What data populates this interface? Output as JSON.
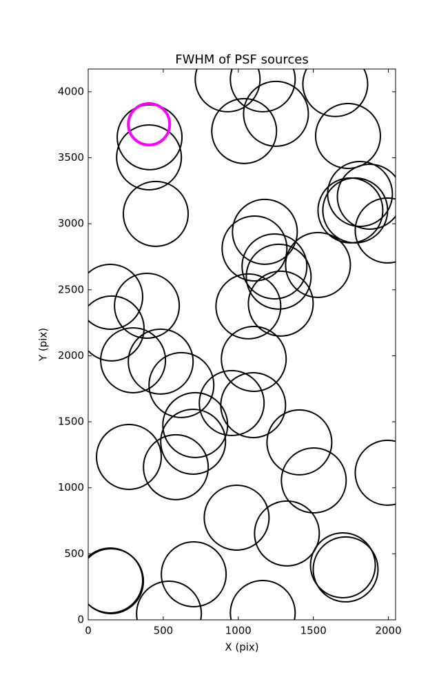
{
  "chart_data": {
    "type": "scatter",
    "title": "FWHM of PSF sources",
    "x_label": "X (pix)",
    "y_label": "Y (pix)",
    "x": [
      147,
      156,
      299,
      483,
      391,
      621,
      147,
      152,
      271,
      584,
      699,
      713,
      538,
      703,
      450,
      405,
      409,
      405,
      929,
      1163,
      1039,
      1251,
      1646,
      1731,
      1177,
      1108,
      1241,
      1269,
      1531,
      1067,
      1283,
      1103,
      956,
      1099,
      1407,
      1503,
      989,
      1324,
      1697,
      1715,
      1163,
      1811,
      1876,
      1747,
      1779,
      1995,
      1995
    ],
    "y": [
      2447,
      2207,
      1966,
      1956,
      2379,
      1778,
      298,
      293,
      1234,
      1156,
      1349,
      1475,
      47,
      345,
      3075,
      3503,
      3655,
      3754,
      4094,
      4094,
      3702,
      3833,
      4058,
      3665,
      2939,
      2813,
      2677,
      2599,
      2688,
      2374,
      2395,
      1976,
      1642,
      1626,
      1344,
      1056,
      774,
      654,
      413,
      382,
      52,
      3226,
      3205,
      3101,
      3101,
      2949,
      1114
    ],
    "color": "#000000",
    "colors": [
      "#000000",
      "#000000",
      "#000000",
      "#000000",
      "#000000",
      "#000000",
      "#000000",
      "#000000",
      "#000000",
      "#000000",
      "#000000",
      "#000000",
      "#000000",
      "#000000",
      "#000000",
      "#000000",
      "#000000",
      "#ff00ff",
      "#000000",
      "#000000",
      "#000000",
      "#000000",
      "#000000",
      "#000000",
      "#000000",
      "#000000",
      "#000000",
      "#000000",
      "#000000",
      "#000000",
      "#000000",
      "#000000",
      "#000000",
      "#000000",
      "#000000",
      "#000000",
      "#000000",
      "#000000",
      "#000000",
      "#000000",
      "#000000",
      "#000000",
      "#000000",
      "#000000",
      "#000000",
      "#000000",
      "#000000"
    ],
    "xlim": [
      0,
      2048
    ],
    "ylim": [
      0,
      4172
    ],
    "xticks": [
      0,
      500,
      1000,
      1500,
      2000
    ],
    "yticks": [
      0,
      500,
      1000,
      1500,
      2000,
      2500,
      3000,
      3500,
      4000
    ]
  }
}
